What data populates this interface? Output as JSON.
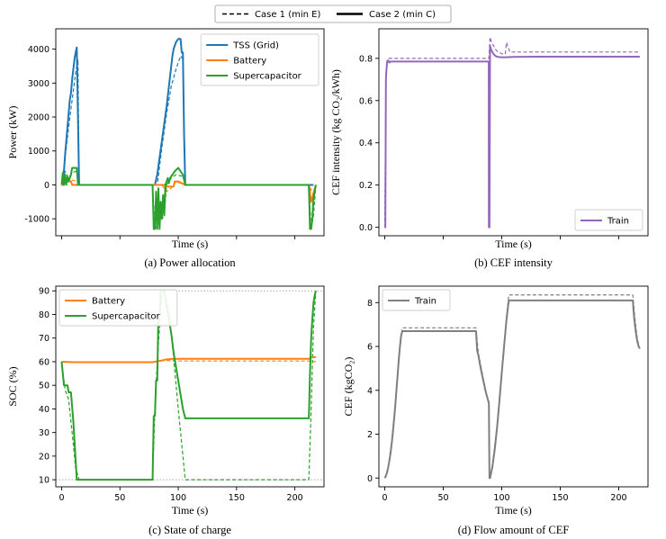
{
  "legend_top": {
    "case1": "Case 1 (min E)",
    "case2": "Case 2 (min C)"
  },
  "chart_data": [
    {
      "id": "a",
      "type": "line",
      "caption": "(a) Power allocation",
      "xlabel": "Time (s)",
      "ylabel": "Power (kW)",
      "xlim": [
        -5,
        225
      ],
      "ylim": [
        -1500,
        4600
      ],
      "yticks": [
        -1000,
        0,
        1000,
        2000,
        3000,
        4000
      ],
      "xtick_positions": [
        0,
        50,
        100,
        150,
        200
      ],
      "show_xtick_labels": false,
      "legend": {
        "loc": "upper right",
        "entries": [
          "TSS (Grid)",
          "Battery",
          "Supercapacitor"
        ]
      },
      "colors": {
        "TSS (Grid)": "#1f77b4",
        "Battery": "#ff7f0e",
        "Supercapacitor": "#2ca02c"
      },
      "series": [
        {
          "name": "TSS (Grid)",
          "case": 2,
          "dash": false,
          "x": [
            0,
            1,
            2,
            3,
            4,
            5,
            6,
            7,
            8,
            9,
            10,
            11,
            12,
            13,
            14,
            15,
            78,
            80,
            82,
            84,
            86,
            88,
            90,
            91,
            92,
            93,
            94,
            95,
            96,
            98,
            100,
            102,
            103,
            104,
            105,
            106,
            107,
            212,
            214,
            216
          ],
          "y": [
            0,
            0,
            400,
            900,
            1300,
            1700,
            2100,
            2500,
            2700,
            3100,
            3400,
            3700,
            3900,
            4050,
            2000,
            0,
            0,
            0,
            300,
            800,
            1300,
            1800,
            2300,
            2600,
            2900,
            3200,
            3500,
            3800,
            4000,
            4200,
            4300,
            4300,
            3900,
            3900,
            1500,
            0,
            0,
            0,
            0,
            0
          ]
        },
        {
          "name": "TSS (Grid)",
          "case": 1,
          "dash": true,
          "x": [
            0,
            3,
            6,
            9,
            12,
            14,
            15,
            82,
            86,
            90,
            94,
            98,
            102,
            104,
            106
          ],
          "y": [
            0,
            800,
            1700,
            2500,
            3300,
            3700,
            0,
            0,
            1100,
            2100,
            2900,
            3400,
            3800,
            3700,
            0
          ]
        },
        {
          "name": "Battery",
          "case": 2,
          "dash": false,
          "x": [
            0,
            2,
            3,
            8,
            9,
            14,
            15,
            78,
            80,
            88,
            90,
            96,
            97,
            100,
            106,
            107,
            212,
            214,
            218
          ],
          "y": [
            0,
            0,
            100,
            100,
            0,
            0,
            0,
            0,
            0,
            0,
            -50,
            -50,
            100,
            100,
            0,
            0,
            0,
            -500,
            0
          ]
        },
        {
          "name": "Battery",
          "case": 1,
          "dash": true,
          "x": [
            0,
            3,
            8,
            14,
            15,
            78,
            86,
            90,
            94,
            98,
            106,
            212,
            216,
            218
          ],
          "y": [
            0,
            100,
            150,
            100,
            0,
            0,
            0,
            -200,
            -100,
            100,
            0,
            0,
            -300,
            0
          ]
        },
        {
          "name": "Supercapacitor",
          "case": 2,
          "dash": false,
          "x": [
            0,
            1,
            2,
            3,
            4,
            5,
            6,
            7,
            8,
            9,
            10,
            13,
            14,
            15,
            78,
            79,
            80,
            81,
            82,
            83,
            84,
            85,
            86,
            87,
            88,
            89,
            90,
            91,
            92,
            93,
            95,
            97,
            100,
            104,
            106,
            107,
            212,
            213,
            214,
            215,
            216,
            217,
            218
          ],
          "y": [
            0,
            350,
            0,
            300,
            0,
            250,
            100,
            200,
            300,
            500,
            500,
            500,
            0,
            0,
            0,
            -1300,
            -1300,
            -200,
            -1300,
            -100,
            -1300,
            -500,
            -1000,
            -300,
            -900,
            0,
            100,
            200,
            50,
            200,
            300,
            400,
            500,
            300,
            0,
            0,
            0,
            -1300,
            -1300,
            -1000,
            -400,
            -200,
            0
          ]
        },
        {
          "name": "Supercapacitor",
          "case": 1,
          "dash": true,
          "x": [
            0,
            3,
            6,
            9,
            12,
            14,
            15,
            78,
            80,
            84,
            88,
            90,
            94,
            98,
            104,
            106,
            212,
            214,
            216,
            218
          ],
          "y": [
            0,
            400,
            200,
            350,
            400,
            350,
            0,
            0,
            -1300,
            -1100,
            -900,
            0,
            200,
            300,
            250,
            0,
            0,
            -1300,
            -900,
            0
          ]
        }
      ]
    },
    {
      "id": "b",
      "type": "line",
      "caption": "(b) CEF intensity",
      "xlabel": "Time (s)",
      "ylabel": "CEF intensity (kg CO₂/kWh)",
      "xlim": [
        -5,
        225
      ],
      "ylim": [
        -0.04,
        0.94
      ],
      "yticks": [
        0.0,
        0.2,
        0.4,
        0.6,
        0.8
      ],
      "xtick_positions": [
        0,
        50,
        100,
        150,
        200
      ],
      "show_xtick_labels": false,
      "legend": {
        "loc": "lower right",
        "entries": [
          "Train"
        ]
      },
      "colors": {
        "Train": "#9467bd"
      },
      "series": [
        {
          "name": "Train",
          "case": 2,
          "dash": false,
          "x": [
            0,
            0.5,
            1,
            1.5,
            2,
            2.5,
            3,
            4,
            5,
            6,
            8,
            10,
            12,
            15,
            30,
            50,
            70,
            88.9,
            89,
            89.5,
            90,
            91,
            92,
            93,
            94,
            95,
            96,
            98,
            100,
            103,
            106,
            110,
            130,
            160,
            190,
            218
          ],
          "y": [
            0.0,
            0.0,
            0.7,
            0.75,
            0.78,
            0.79,
            0.79,
            0.78,
            0.785,
            0.785,
            0.785,
            0.785,
            0.785,
            0.785,
            0.785,
            0.785,
            0.785,
            0.785,
            0.0,
            0.0,
            0.86,
            0.84,
            0.83,
            0.82,
            0.815,
            0.81,
            0.808,
            0.806,
            0.805,
            0.805,
            0.806,
            0.807,
            0.808,
            0.808,
            0.808,
            0.808
          ]
        },
        {
          "name": "Train",
          "case": 1,
          "dash": true,
          "x": [
            0,
            1,
            2,
            3,
            4,
            6,
            10,
            20,
            50,
            80,
            89,
            90,
            91,
            92,
            93,
            95,
            97,
            99,
            101,
            103,
            104,
            105,
            107,
            110,
            130,
            160,
            190,
            218
          ],
          "y": [
            0.0,
            0.72,
            0.79,
            0.8,
            0.8,
            0.8,
            0.8,
            0.8,
            0.8,
            0.8,
            0.8,
            0.9,
            0.88,
            0.87,
            0.86,
            0.84,
            0.83,
            0.825,
            0.82,
            0.82,
            0.875,
            0.86,
            0.83,
            0.83,
            0.83,
            0.83,
            0.83,
            0.83
          ]
        }
      ]
    },
    {
      "id": "c",
      "type": "line",
      "caption": "(c) State of charge",
      "xlabel": "Time (s)",
      "ylabel": "SOC (%)",
      "xlim": [
        -5,
        225
      ],
      "ylim": [
        7,
        92
      ],
      "yticks": [
        10,
        20,
        30,
        40,
        50,
        60,
        70,
        80,
        90
      ],
      "xticks": [
        0,
        50,
        100,
        150,
        200
      ],
      "hlines_dotted": [
        10,
        90
      ],
      "legend": {
        "loc": "upper left",
        "entries": [
          "Battery",
          "Supercapacitor"
        ]
      },
      "colors": {
        "Battery": "#ff7f0e",
        "Supercapacitor": "#2ca02c"
      },
      "series": [
        {
          "name": "Battery",
          "case": 2,
          "dash": false,
          "x": [
            0,
            10,
            30,
            50,
            78,
            80,
            86,
            90,
            96,
            100,
            106,
            150,
            200,
            212,
            214,
            218
          ],
          "y": [
            60,
            59.8,
            59.8,
            59.8,
            59.8,
            60,
            60.5,
            61,
            61.2,
            61.2,
            61.2,
            61.2,
            61.2,
            61.2,
            61.8,
            62
          ]
        },
        {
          "name": "Battery",
          "case": 1,
          "dash": true,
          "x": [
            0,
            10,
            50,
            78,
            86,
            90,
            98,
            106,
            150,
            212,
            218
          ],
          "y": [
            60,
            59.7,
            59.7,
            59.7,
            60.5,
            60.5,
            60.3,
            60.3,
            60.3,
            60.3,
            60
          ]
        },
        {
          "name": "Supercapacitor",
          "case": 2,
          "dash": false,
          "x": [
            0,
            2,
            3,
            5,
            6,
            8,
            10,
            13,
            15,
            78,
            79,
            80,
            81,
            82,
            83,
            84,
            85,
            86,
            88,
            90,
            92,
            94,
            96,
            100,
            104,
            106,
            150,
            212,
            213,
            214,
            215,
            216,
            217,
            218
          ],
          "y": [
            60,
            50,
            50,
            50,
            47,
            47,
            35,
            10,
            10,
            10,
            37,
            37,
            52,
            52,
            80,
            80,
            90,
            90,
            90,
            84,
            78,
            72,
            64,
            52,
            40,
            36,
            36,
            36,
            55,
            70,
            78,
            85,
            88,
            90
          ]
        },
        {
          "name": "Supercapacitor",
          "case": 1,
          "dash": true,
          "x": [
            0,
            3,
            6,
            9,
            12,
            15,
            78,
            80,
            82,
            84,
            86,
            88,
            92,
            96,
            100,
            104,
            106,
            150,
            212,
            214,
            216,
            218
          ],
          "y": [
            60,
            48,
            44,
            30,
            15,
            10,
            10,
            40,
            60,
            75,
            88,
            90,
            82,
            62,
            40,
            20,
            10,
            10,
            10,
            40,
            75,
            90
          ]
        }
      ]
    },
    {
      "id": "d",
      "type": "line",
      "caption": "(d) Flow amount of CEF",
      "xlabel": "Time (s)",
      "ylabel": "CEF (kgCO₂)",
      "xlim": [
        -5,
        225
      ],
      "ylim": [
        -0.4,
        8.75
      ],
      "yticks": [
        0,
        2,
        4,
        6,
        8
      ],
      "xticks": [
        0,
        50,
        100,
        150,
        200
      ],
      "legend": {
        "loc": "upper left",
        "entries": [
          "Train"
        ]
      },
      "colors": {
        "Train": "#7f7f7f"
      },
      "series": [
        {
          "name": "Train",
          "case": 2,
          "dash": false,
          "x": [
            0,
            1,
            2,
            3,
            4,
            5,
            6,
            7,
            8,
            9,
            10,
            11,
            12,
            13,
            14,
            15,
            50,
            78,
            79,
            80,
            82,
            84,
            86,
            88,
            89,
            89.5,
            90,
            92,
            94,
            96,
            98,
            100,
            102,
            104,
            106,
            150,
            200,
            212,
            213,
            214,
            215,
            216,
            217,
            218
          ],
          "y": [
            0.0,
            0.1,
            0.25,
            0.5,
            0.8,
            1.15,
            1.6,
            2.1,
            2.7,
            3.3,
            4.0,
            4.7,
            5.4,
            6.0,
            6.5,
            6.7,
            6.7,
            6.7,
            5.8,
            5.6,
            5.0,
            4.5,
            4.0,
            3.6,
            3.4,
            0.0,
            0.0,
            0.5,
            1.3,
            2.3,
            3.5,
            4.8,
            6.0,
            7.2,
            8.1,
            8.1,
            8.1,
            8.1,
            7.4,
            6.9,
            6.5,
            6.2,
            6.0,
            5.9
          ]
        },
        {
          "name": "Train",
          "case": 1,
          "dash": true,
          "x": [
            0,
            3,
            6,
            9,
            12,
            15,
            50,
            78,
            80,
            84,
            88,
            89,
            89.5,
            92,
            96,
            100,
            104,
            106,
            150,
            212,
            214,
            216,
            218
          ],
          "y": [
            0.0,
            0.5,
            1.7,
            3.4,
            5.5,
            6.85,
            6.85,
            6.85,
            5.7,
            4.6,
            3.6,
            3.5,
            0.0,
            0.6,
            2.4,
            4.9,
            7.3,
            8.35,
            8.35,
            8.35,
            7.2,
            6.3,
            5.9
          ]
        }
      ]
    }
  ]
}
